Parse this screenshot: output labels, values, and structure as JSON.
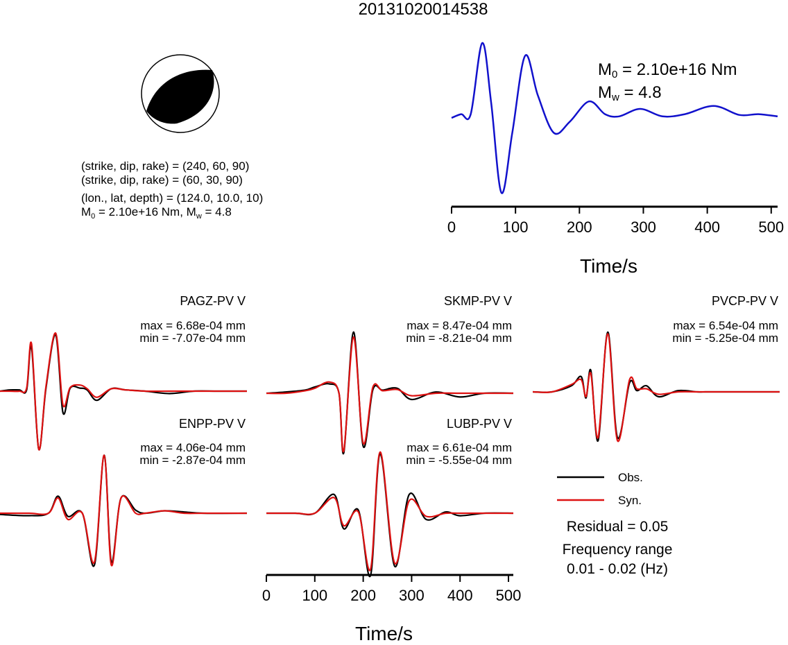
{
  "header": {
    "event_id": "20131020014538"
  },
  "focal_info": {
    "plane1": "(strike, dip, rake) = (240, 60, 90)",
    "plane2": "(strike, dip, rake) = (60, 30, 90)",
    "location": "(lon., lat, depth) = (124.0, 10.0, 10)",
    "m0_prefix": "M",
    "m0_sub": "0",
    "m0_value": " = 2.10e+16 Nm, M",
    "mw_sub": "w",
    "mw_value": " = 4.8"
  },
  "stf_annotation": {
    "m0_prefix": "M",
    "m0_sub": "0",
    "m0_value": " = 2.10e+16 Nm",
    "mw_prefix": "M",
    "mw_sub": "w",
    "mw_value": " = 4.8"
  },
  "colors": {
    "observed": "#000000",
    "synthetic": "#dd1111",
    "stf": "#1111cc"
  },
  "chart_data": [
    {
      "type": "line",
      "title": "",
      "xlabel": "Time/s",
      "x_ticks": [
        "0",
        "100",
        "200",
        "300",
        "400",
        "500"
      ],
      "xlim": [
        0,
        510
      ],
      "series": [
        {
          "name": "",
          "x": [
            0,
            15,
            30,
            48,
            62,
            78,
            95,
            115,
            135,
            160,
            185,
            215,
            240,
            262,
            295,
            330,
            365,
            410,
            450,
            480,
            510
          ],
          "y": [
            0.0,
            0.05,
            0.05,
            1.0,
            0.2,
            -1.0,
            -0.2,
            0.83,
            0.3,
            -0.2,
            -0.05,
            0.22,
            0.05,
            0.02,
            0.12,
            0.02,
            0.05,
            0.16,
            0.04,
            0.05,
            0.02
          ]
        }
      ]
    },
    {
      "type": "line",
      "title": "PAGZ-PV V",
      "annotations": [
        "max = 6.68e-04 mm",
        "min = -7.07e-04 mm"
      ],
      "xlim": [
        0,
        510
      ],
      "series": [
        {
          "name": "Obs.",
          "x": [
            0,
            20,
            40,
            55,
            65,
            80,
            95,
            115,
            130,
            145,
            165,
            180,
            200,
            230,
            260,
            300,
            350,
            400,
            450,
            510
          ],
          "y": [
            0.0,
            0.02,
            0.02,
            0.02,
            0.72,
            -0.95,
            0.05,
            0.92,
            -0.35,
            0.05,
            0.05,
            0.02,
            -0.15,
            0.04,
            0.02,
            0.0,
            -0.04,
            0.0,
            0.0,
            0.0
          ]
        },
        {
          "name": "Syn.",
          "x": [
            0,
            20,
            40,
            55,
            65,
            80,
            95,
            115,
            130,
            145,
            165,
            180,
            200,
            230,
            260,
            300,
            350,
            400,
            450,
            510
          ],
          "y": [
            0.0,
            0.0,
            0.0,
            0.05,
            0.78,
            -0.95,
            0.08,
            0.95,
            -0.22,
            0.06,
            0.1,
            0.04,
            -0.1,
            0.04,
            0.02,
            0.0,
            0.0,
            0.0,
            0.0,
            0.0
          ]
        }
      ]
    },
    {
      "type": "line",
      "title": "SKMP-PV V",
      "annotations": [
        "max = 8.47e-04 mm",
        "min = -8.21e-04 mm"
      ],
      "xlim": [
        0,
        510
      ],
      "series": [
        {
          "name": "Obs.",
          "x": [
            0,
            40,
            80,
            100,
            130,
            150,
            160,
            180,
            200,
            220,
            240,
            270,
            300,
            350,
            400,
            450,
            510
          ],
          "y": [
            0.0,
            0.02,
            0.05,
            0.1,
            0.15,
            0.0,
            -0.95,
            0.98,
            -0.85,
            0.06,
            0.05,
            0.08,
            -0.1,
            0.02,
            -0.06,
            0.0,
            0.0
          ]
        },
        {
          "name": "Syn.",
          "x": [
            0,
            40,
            80,
            100,
            130,
            150,
            160,
            180,
            200,
            220,
            240,
            270,
            300,
            350,
            400,
            450,
            510
          ],
          "y": [
            0.0,
            0.0,
            0.04,
            0.08,
            0.18,
            0.0,
            -0.92,
            0.9,
            -0.8,
            0.1,
            0.04,
            0.06,
            -0.04,
            0.0,
            0.0,
            0.0,
            0.0
          ]
        }
      ]
    },
    {
      "type": "line",
      "title": "PVCP-PV V",
      "annotations": [
        "max = 6.54e-04 mm",
        "min = -5.25e-04 mm"
      ],
      "xlim": [
        0,
        510
      ],
      "series": [
        {
          "name": "Obs.",
          "x": [
            0,
            40,
            80,
            100,
            110,
            120,
            135,
            155,
            175,
            200,
            215,
            235,
            260,
            300,
            340,
            360,
            400,
            450,
            510
          ],
          "y": [
            0.0,
            0.0,
            0.1,
            0.25,
            -0.1,
            0.35,
            -0.8,
            0.98,
            -0.75,
            0.15,
            0.02,
            0.1,
            -0.08,
            0.02,
            0.0,
            0.0,
            0.0,
            0.0,
            0.0
          ]
        },
        {
          "name": "Syn.",
          "x": [
            0,
            40,
            80,
            100,
            110,
            120,
            135,
            155,
            175,
            200,
            215,
            235,
            260,
            300,
            340,
            360,
            400,
            450,
            510
          ],
          "y": [
            0.0,
            0.0,
            0.12,
            0.2,
            -0.08,
            0.3,
            -0.75,
            0.95,
            -0.8,
            0.2,
            0.05,
            0.05,
            -0.04,
            0.0,
            0.0,
            0.0,
            0.0,
            0.0,
            0.0
          ]
        }
      ]
    },
    {
      "type": "line",
      "title": "ENPP-PV V",
      "annotations": [
        "max = 4.06e-04 mm",
        "min = -2.87e-04 mm"
      ],
      "xlim": [
        0,
        510
      ],
      "series": [
        {
          "name": "Obs.",
          "x": [
            0,
            60,
            100,
            120,
            140,
            170,
            195,
            215,
            230,
            250,
            280,
            300,
            340,
            380,
            420,
            510
          ],
          "y": [
            -0.02,
            -0.04,
            0.0,
            0.28,
            -0.05,
            0.0,
            -0.85,
            0.95,
            -0.8,
            0.25,
            0.05,
            0.0,
            0.04,
            0.02,
            0.0,
            0.0
          ]
        },
        {
          "name": "Syn.",
          "x": [
            0,
            60,
            100,
            120,
            140,
            170,
            195,
            215,
            230,
            250,
            280,
            300,
            340,
            380,
            420,
            510
          ],
          "y": [
            0.0,
            0.0,
            0.0,
            0.25,
            -0.1,
            0.0,
            -0.8,
            0.95,
            -0.85,
            0.25,
            0.0,
            0.0,
            0.04,
            0.0,
            0.0,
            0.0
          ]
        }
      ]
    },
    {
      "type": "line",
      "title": "LUBP-PV V",
      "annotations": [
        "max = 6.61e-04 mm",
        "min = -5.55e-04 mm"
      ],
      "xlim": [
        0,
        510
      ],
      "series": [
        {
          "name": "Obs.",
          "x": [
            0,
            60,
            100,
            140,
            160,
            190,
            215,
            235,
            265,
            295,
            330,
            370,
            400,
            450,
            510
          ],
          "y": [
            0.0,
            0.0,
            0.0,
            0.3,
            -0.25,
            0.05,
            -1.0,
            0.95,
            -0.85,
            0.3,
            -0.1,
            0.02,
            -0.04,
            0.0,
            0.0
          ]
        },
        {
          "name": "Syn.",
          "x": [
            0,
            60,
            100,
            140,
            160,
            190,
            215,
            235,
            265,
            295,
            330,
            370,
            400,
            450,
            510
          ],
          "y": [
            0.0,
            0.0,
            0.0,
            0.25,
            -0.2,
            0.02,
            -0.9,
            0.98,
            -0.8,
            0.2,
            -0.05,
            0.0,
            0.0,
            0.0,
            0.0
          ]
        }
      ]
    },
    {
      "type": "line",
      "xlabel": "Time/s",
      "x_ticks": [
        "0",
        "100",
        "200",
        "300",
        "400",
        "500"
      ],
      "xlim": [
        0,
        510
      ]
    }
  ],
  "legend": {
    "obs": "Obs.",
    "syn": "Syn."
  },
  "info": {
    "residual": "Residual = 0.05",
    "freq_label": "Frequency range",
    "freq_value": "0.01 - 0.02 (Hz)"
  }
}
